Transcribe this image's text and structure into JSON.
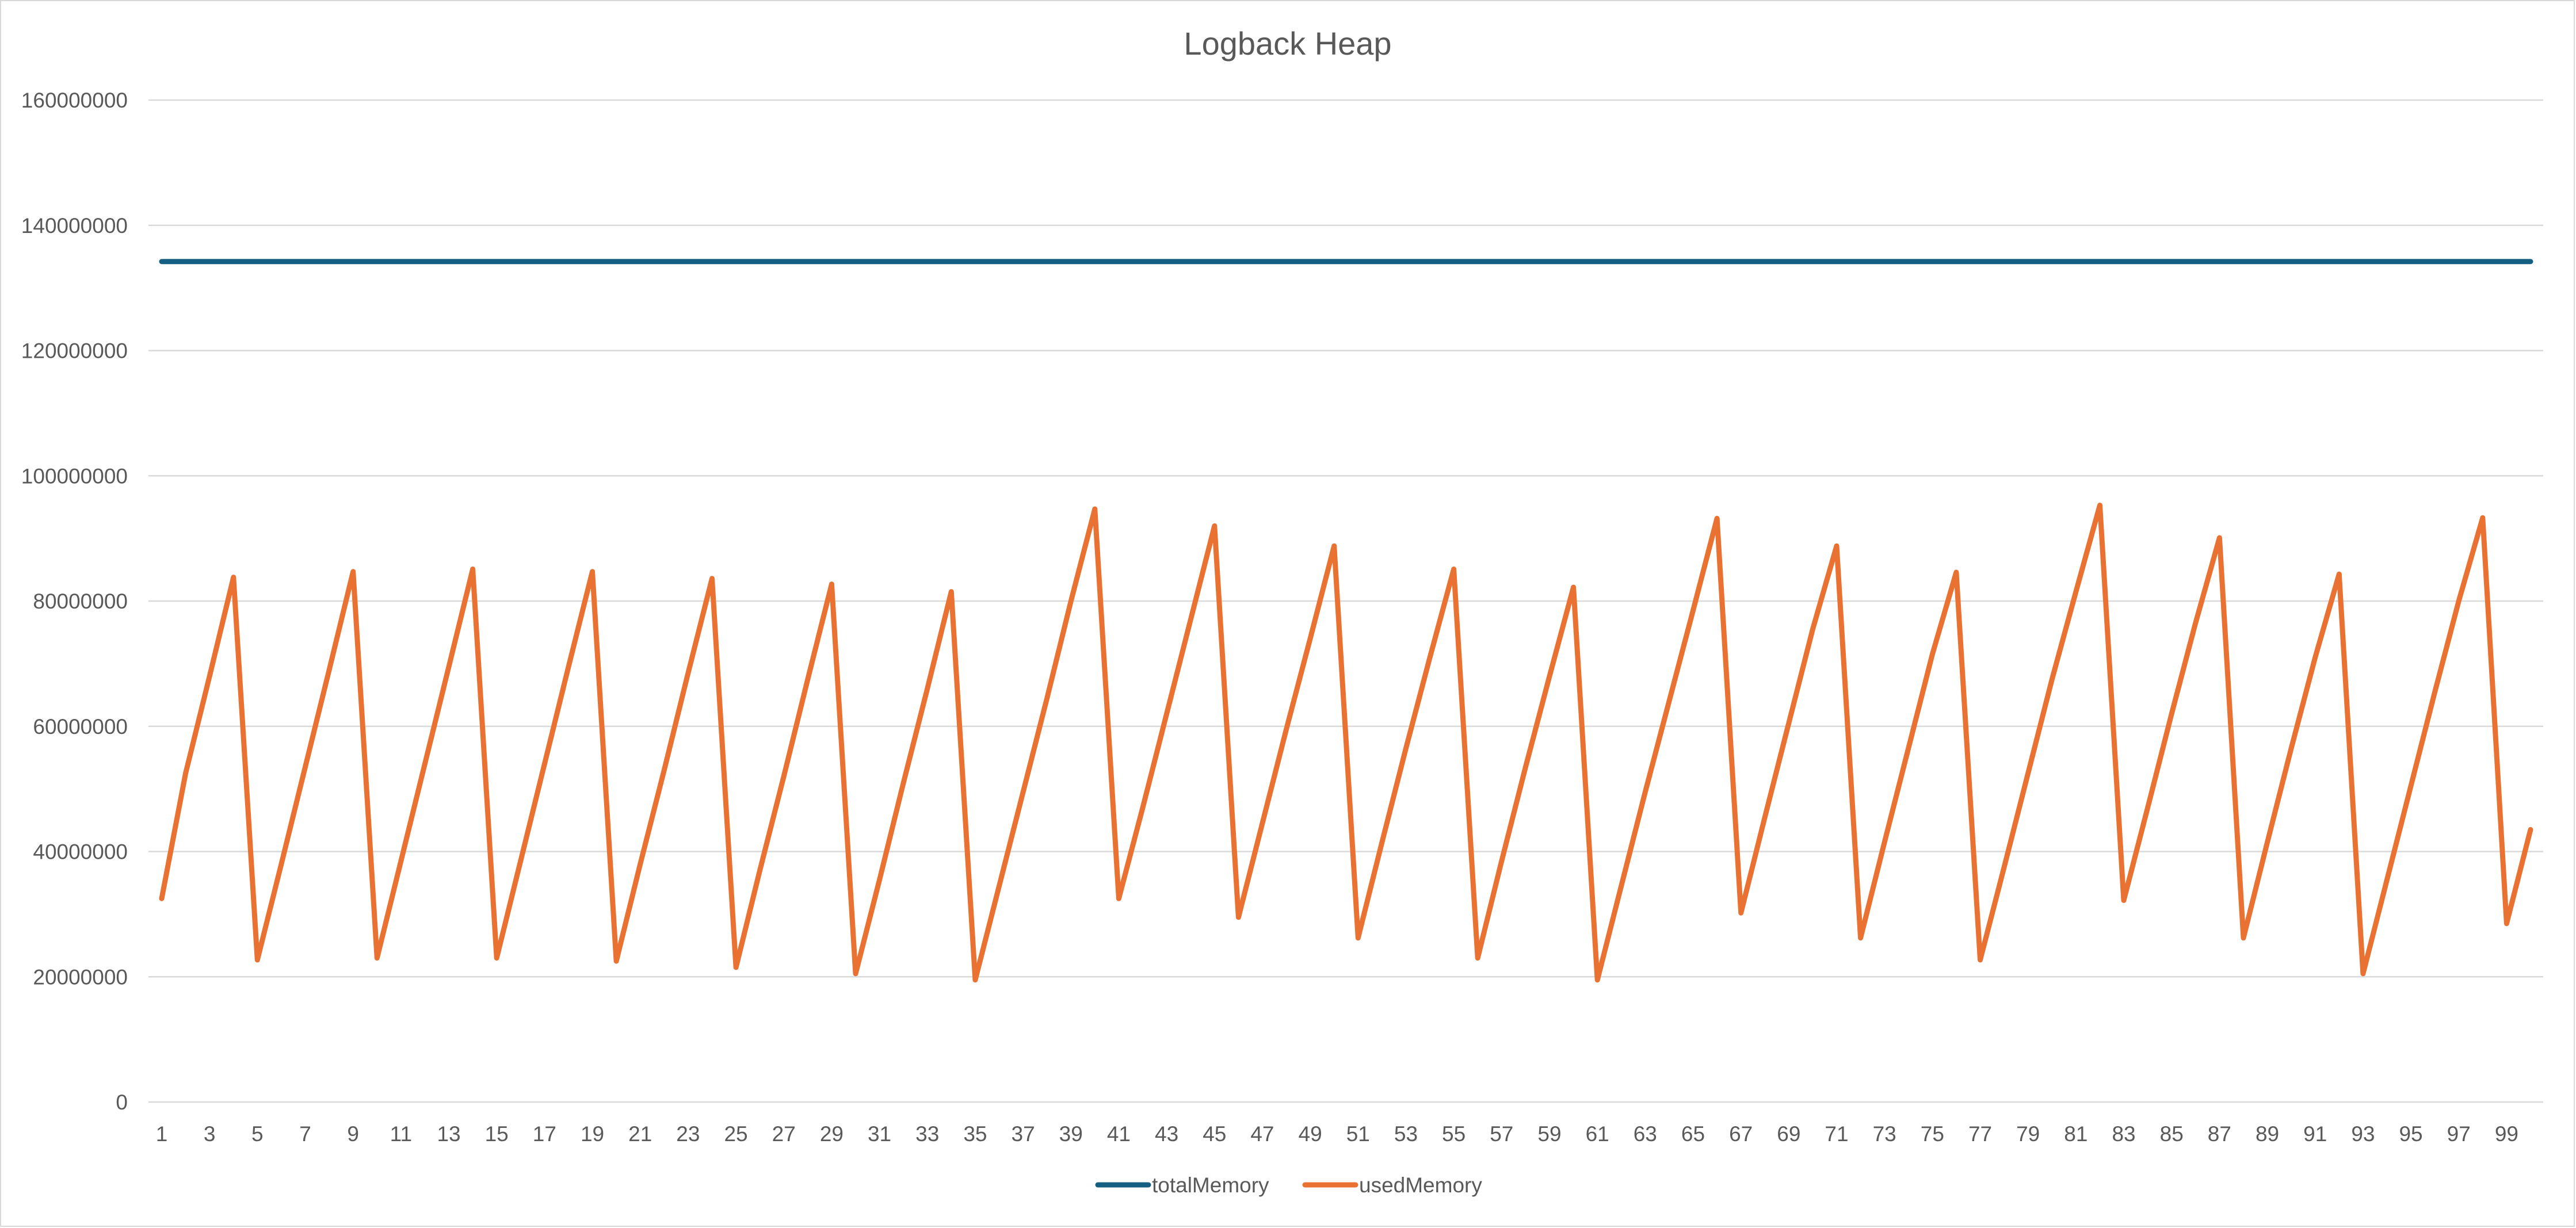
{
  "chart_data": {
    "type": "line",
    "title": "Logback Heap",
    "xlabel": "",
    "ylabel": "",
    "ylim": [
      0,
      160000000
    ],
    "yticks": [
      0,
      20000000,
      40000000,
      60000000,
      80000000,
      100000000,
      120000000,
      140000000,
      160000000
    ],
    "ytick_labels": [
      "0",
      "20000000",
      "40000000",
      "60000000",
      "80000000",
      "100000000",
      "120000000",
      "140000000",
      "160000000"
    ],
    "x": [
      1,
      2,
      3,
      4,
      5,
      6,
      7,
      8,
      9,
      10,
      11,
      12,
      13,
      14,
      15,
      16,
      17,
      18,
      19,
      20,
      21,
      22,
      23,
      24,
      25,
      26,
      27,
      28,
      29,
      30,
      31,
      32,
      33,
      34,
      35,
      36,
      37,
      38,
      39,
      40,
      41,
      42,
      43,
      44,
      45,
      46,
      47,
      48,
      49,
      50,
      51,
      52,
      53,
      54,
      55,
      56,
      57,
      58,
      59,
      60,
      61,
      62,
      63,
      64,
      65,
      66,
      67,
      68,
      69,
      70,
      71,
      72,
      73,
      74,
      75,
      76,
      77,
      78,
      79,
      80,
      81,
      82,
      83,
      84,
      85,
      86,
      87,
      88,
      89,
      90,
      91,
      92,
      93,
      94,
      95,
      96,
      97,
      98,
      99,
      100
    ],
    "xtick_labels": [
      "1",
      "3",
      "5",
      "7",
      "9",
      "11",
      "13",
      "15",
      "17",
      "19",
      "21",
      "23",
      "25",
      "27",
      "29",
      "31",
      "33",
      "35",
      "37",
      "39",
      "41",
      "43",
      "45",
      "47",
      "49",
      "51",
      "53",
      "55",
      "57",
      "59",
      "61",
      "63",
      "65",
      "67",
      "69",
      "71",
      "73",
      "75",
      "77",
      "79",
      "81",
      "83",
      "85",
      "87",
      "89",
      "91",
      "93",
      "95",
      "97",
      "99"
    ],
    "grid": true,
    "legend_position": "bottom",
    "series": [
      {
        "name": "totalMemory",
        "color": "#156082",
        "values": [
          134217728,
          134217728,
          134217728,
          134217728,
          134217728,
          134217728,
          134217728,
          134217728,
          134217728,
          134217728,
          134217728,
          134217728,
          134217728,
          134217728,
          134217728,
          134217728,
          134217728,
          134217728,
          134217728,
          134217728,
          134217728,
          134217728,
          134217728,
          134217728,
          134217728,
          134217728,
          134217728,
          134217728,
          134217728,
          134217728,
          134217728,
          134217728,
          134217728,
          134217728,
          134217728,
          134217728,
          134217728,
          134217728,
          134217728,
          134217728,
          134217728,
          134217728,
          134217728,
          134217728,
          134217728,
          134217728,
          134217728,
          134217728,
          134217728,
          134217728,
          134217728,
          134217728,
          134217728,
          134217728,
          134217728,
          134217728,
          134217728,
          134217728,
          134217728,
          134217728,
          134217728,
          134217728,
          134217728,
          134217728,
          134217728,
          134217728,
          134217728,
          134217728,
          134217728,
          134217728,
          134217728,
          134217728,
          134217728,
          134217728,
          134217728,
          134217728,
          134217728,
          134217728,
          134217728,
          134217728,
          134217728,
          134217728,
          134217728,
          134217728,
          134217728,
          134217728,
          134217728,
          134217728,
          134217728,
          134217728,
          134217728,
          134217728,
          134217728,
          134217728,
          134217728,
          134217728,
          134217728,
          134217728,
          134217728,
          134217728
        ]
      },
      {
        "name": "usedMemory",
        "color": "#E97132",
        "values": [
          32500000,
          52500000,
          68000000,
          83800000,
          22700000,
          38000000,
          53500000,
          69000000,
          84700000,
          23000000,
          38500000,
          54000000,
          69500000,
          85100000,
          23000000,
          38500000,
          54000000,
          69500000,
          84700000,
          22500000,
          38000000,
          53000000,
          68500000,
          83600000,
          21500000,
          37000000,
          52000000,
          67500000,
          82700000,
          20500000,
          35500000,
          51000000,
          66000000,
          81500000,
          19500000,
          34500000,
          49500000,
          64500000,
          80000000,
          94700000,
          32500000,
          47000000,
          62000000,
          77000000,
          92000000,
          29500000,
          44500000,
          59500000,
          74000000,
          88800000,
          26200000,
          41500000,
          56500000,
          71000000,
          85100000,
          23000000,
          38500000,
          53500000,
          68000000,
          82200000,
          19500000,
          34500000,
          49500000,
          64000000,
          78500000,
          93200000,
          30200000,
          45500000,
          60500000,
          75500000,
          88800000,
          26200000,
          41500000,
          56500000,
          71500000,
          84600000,
          22700000,
          37500000,
          52500000,
          67500000,
          81500000,
          95300000,
          32200000,
          47000000,
          62000000,
          76500000,
          90100000,
          26200000,
          41500000,
          56500000,
          71000000,
          84300000,
          20500000,
          35500000,
          50500000,
          65500000,
          80000000,
          93300000,
          28500000,
          43500000
        ]
      }
    ]
  }
}
